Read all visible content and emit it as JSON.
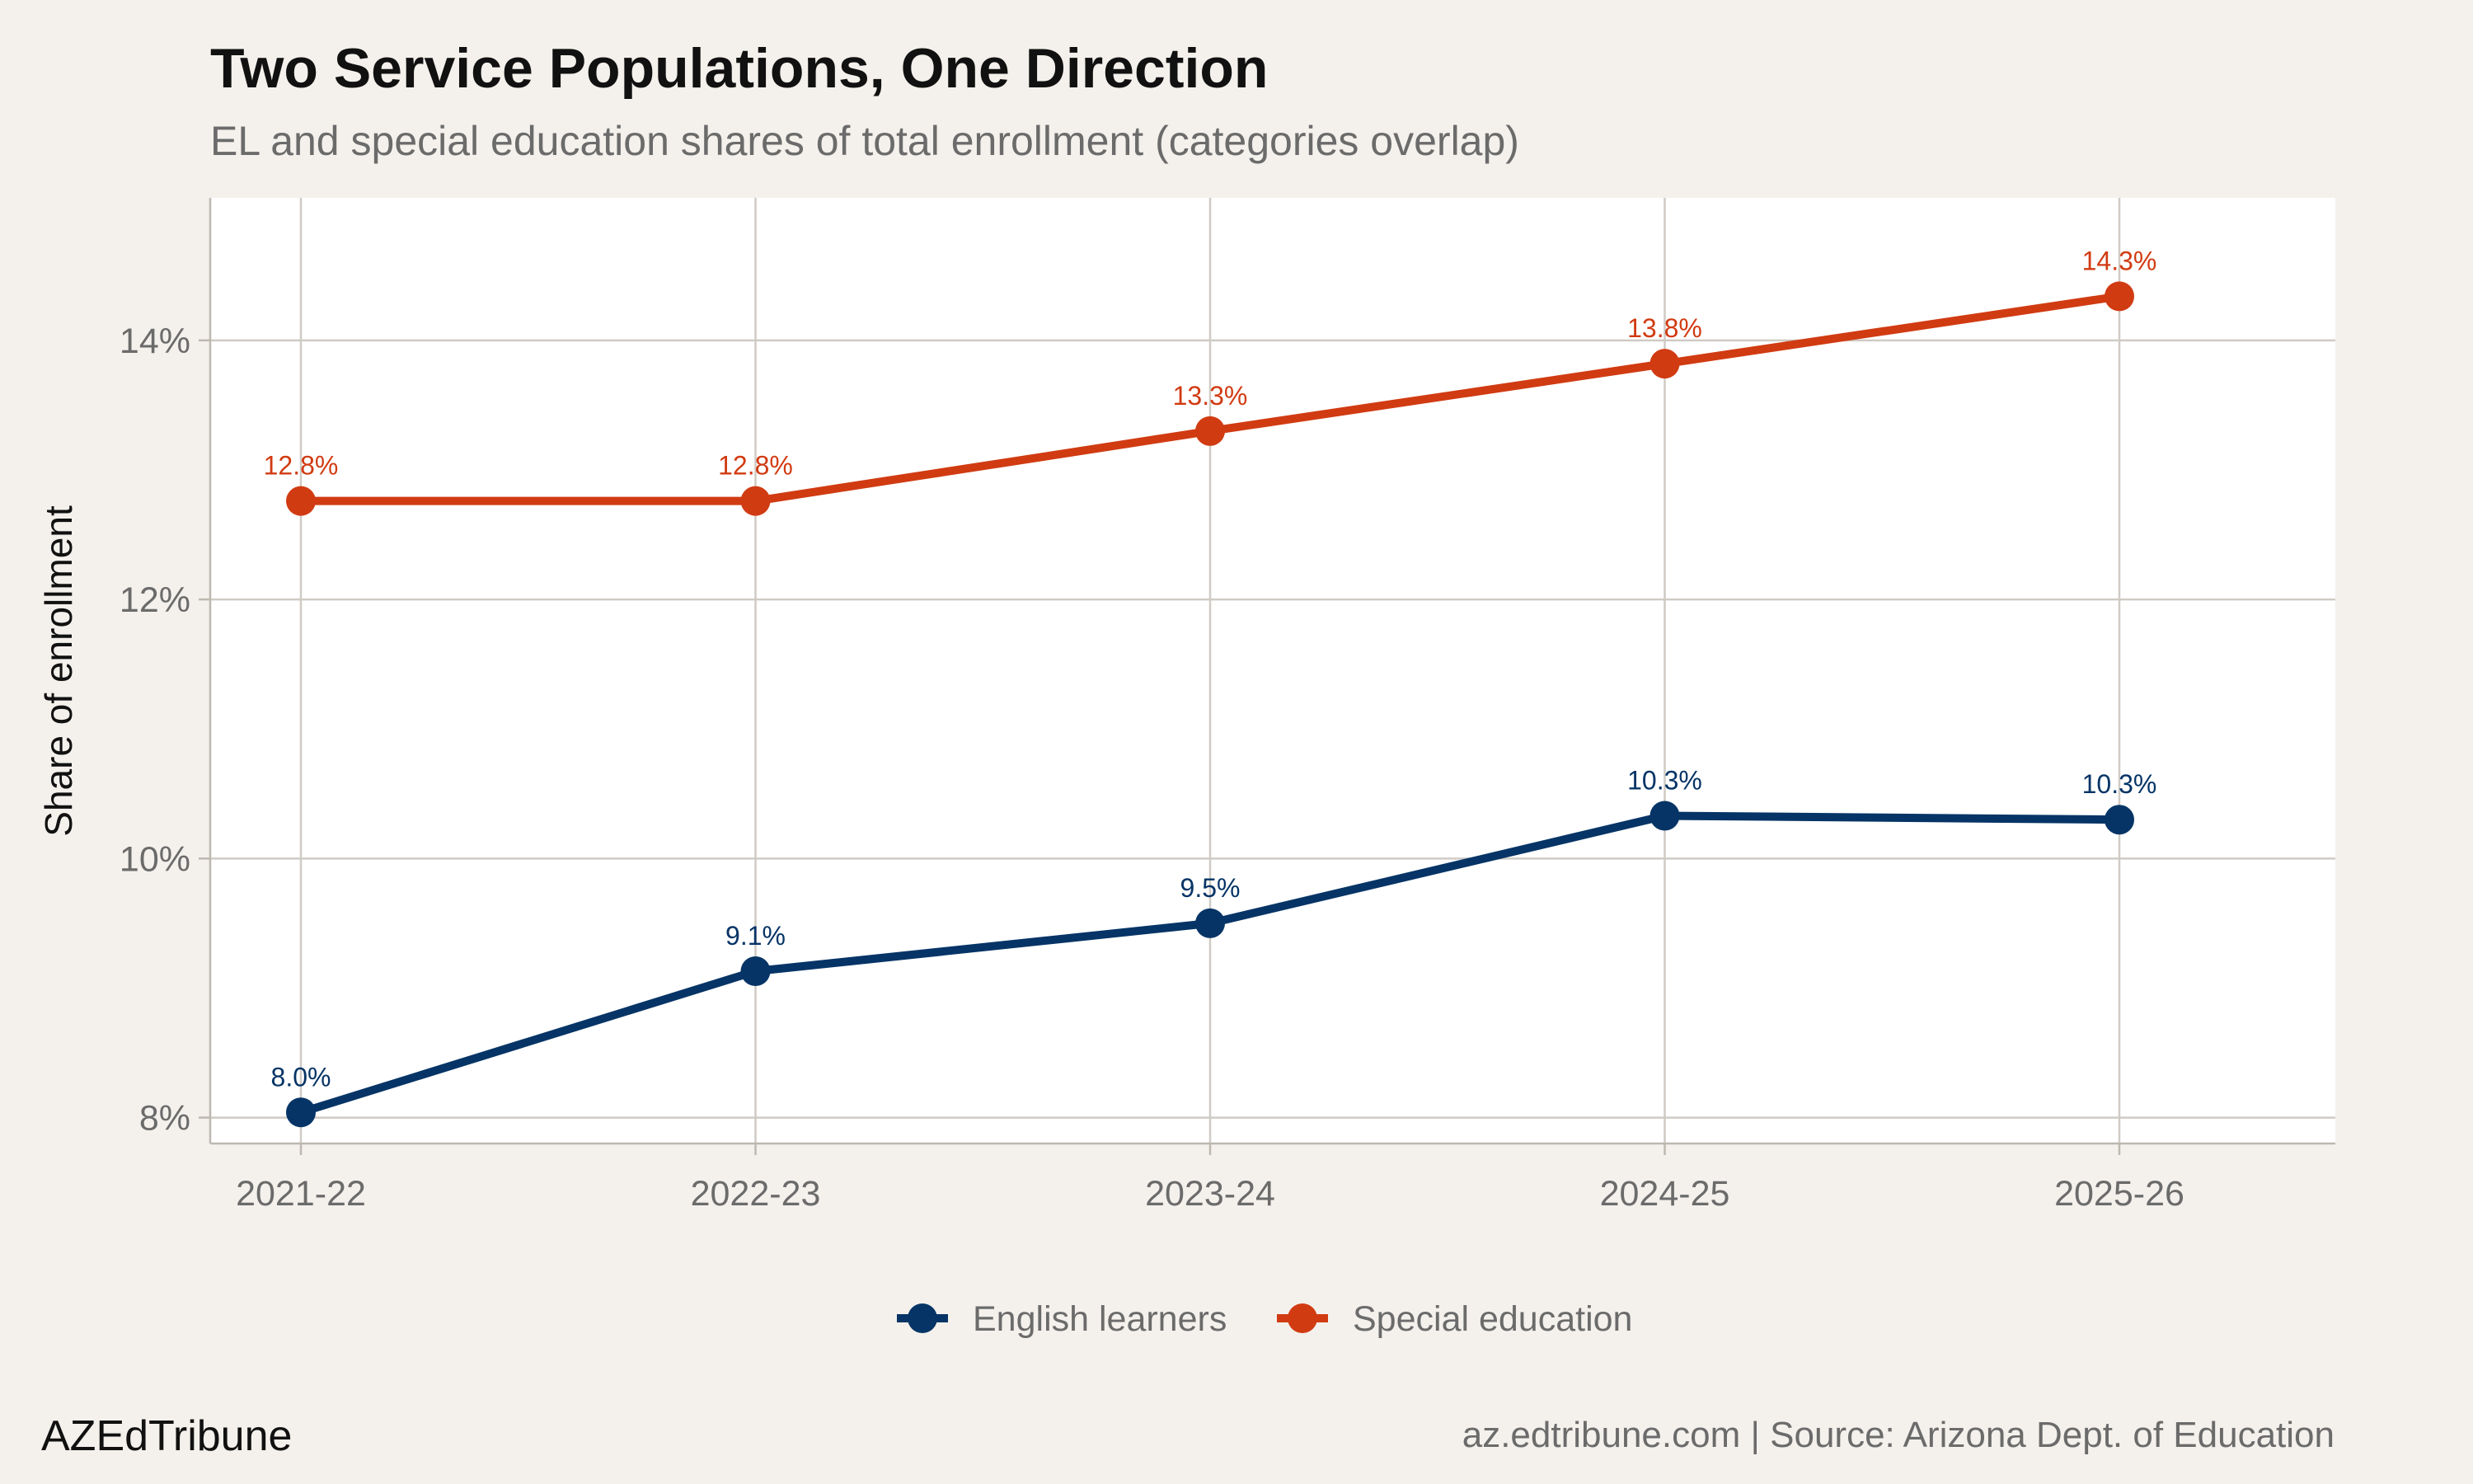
{
  "chart_data": {
    "type": "line",
    "title": "Two Service Populations, One Direction",
    "subtitle": "EL and special education shares of total enrollment (categories overlap)",
    "xlabel": "",
    "ylabel": "Share of enrollment",
    "categories": [
      "2021-22",
      "2022-23",
      "2023-24",
      "2024-25",
      "2025-26"
    ],
    "ylim": [
      7.8,
      15.1
    ],
    "yticks": [
      8,
      10,
      12,
      14
    ],
    "ytick_labels": [
      "8%",
      "10%",
      "12%",
      "14%"
    ],
    "grid": true,
    "legend_position": "bottom",
    "series": [
      {
        "name": "English learners",
        "color": "#063466",
        "values": [
          8.04,
          9.13,
          9.5,
          10.33,
          10.3
        ],
        "labels": [
          "8.0%",
          "9.1%",
          "9.5%",
          "10.3%",
          "10.3%"
        ]
      },
      {
        "name": "Special education",
        "color": "#d13b12",
        "values": [
          12.76,
          12.76,
          13.3,
          13.82,
          14.34
        ],
        "labels": [
          "12.8%",
          "12.8%",
          "13.3%",
          "13.8%",
          "14.3%"
        ]
      }
    ]
  },
  "footer": {
    "brand": "AZEdTribune",
    "source": "az.edtribune.com | Source: Arizona Dept. of Education"
  }
}
